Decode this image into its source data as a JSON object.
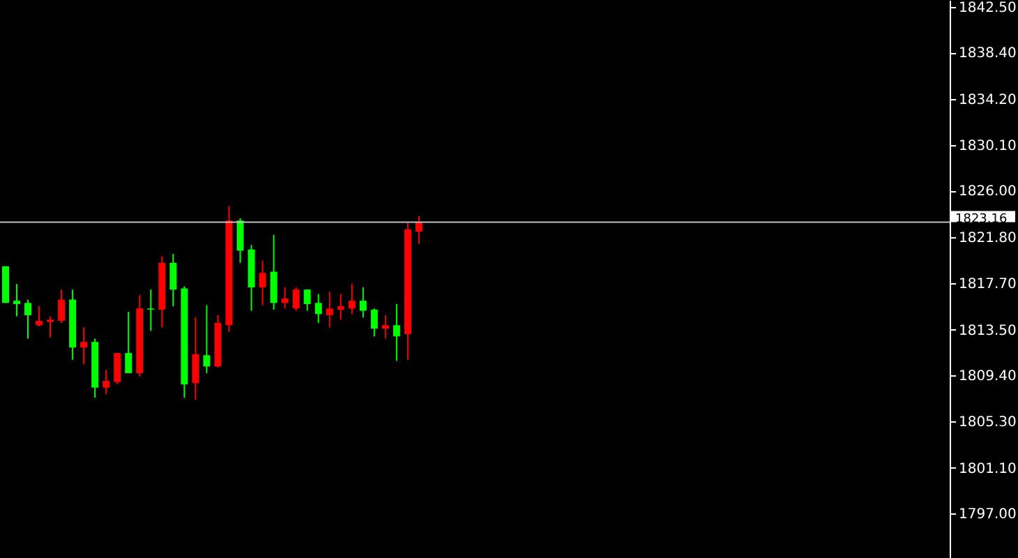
{
  "chart_data": {
    "type": "candlestick",
    "categories": [
      null,
      null,
      null,
      null,
      null,
      null,
      null,
      null,
      null,
      null,
      null,
      null,
      null,
      null,
      null,
      null,
      null,
      null,
      null,
      null,
      null,
      null,
      null,
      null,
      null,
      null,
      null,
      null,
      null,
      null,
      null,
      null,
      null,
      null,
      null,
      null,
      null,
      null,
      null,
      null,
      null,
      null,
      null,
      null,
      null,
      null,
      null,
      null,
      null,
      null,
      null,
      null,
      null,
      null,
      null,
      null,
      null,
      null,
      null,
      null,
      null,
      null,
      null,
      null,
      null,
      null,
      null,
      null,
      null,
      null,
      null,
      null,
      null,
      null,
      null,
      null,
      null,
      null,
      null,
      null,
      null,
      null,
      null,
      null,
      null
    ],
    "ohlc": [
      [
        1819.2,
        1819.2,
        1815.9,
        1815.9
      ],
      [
        1816.1,
        1817.6,
        1814.7,
        1815.8
      ],
      [
        1815.9,
        1816.2,
        1812.7,
        1814.8
      ],
      [
        1813.9,
        1815.6,
        1813.8,
        1814.3
      ],
      [
        1814.2,
        1814.7,
        1812.8,
        1814.4
      ],
      [
        1814.3,
        1817.1,
        1814.1,
        1816.2
      ],
      [
        1816.2,
        1817.1,
        1810.8,
        1811.9
      ],
      [
        1811.9,
        1813.7,
        1810.4,
        1812.4
      ],
      [
        1812.4,
        1812.7,
        1807.4,
        1808.3
      ],
      [
        1808.3,
        1809.9,
        1807.7,
        1808.9
      ],
      [
        1808.8,
        1811.4,
        1808.6,
        1811.4
      ],
      [
        1811.4,
        1815.1,
        1809.6,
        1809.6
      ],
      [
        1809.6,
        1816.6,
        1809.3,
        1815.4
      ],
      [
        1815.4,
        1817.1,
        1813.4,
        1815.3
      ],
      [
        1815.3,
        1820.1,
        1813.7,
        1819.5
      ],
      [
        1819.5,
        1820.3,
        1815.6,
        1817.1
      ],
      [
        1817.2,
        1817.4,
        1807.4,
        1808.6
      ],
      [
        1808.7,
        1814.6,
        1807.2,
        1811.3
      ],
      [
        1811.2,
        1815.7,
        1809.6,
        1810.2
      ],
      [
        1810.2,
        1814.8,
        1810.1,
        1814.1
      ],
      [
        1813.9,
        1824.6,
        1813.3,
        1823.3
      ],
      [
        1823.3,
        1823.5,
        1819.5,
        1820.6
      ],
      [
        1820.7,
        1821.1,
        1815.2,
        1817.3
      ],
      [
        1817.3,
        1819.7,
        1815.7,
        1818.6
      ],
      [
        1818.7,
        1822.0,
        1815.3,
        1815.9
      ],
      [
        1815.9,
        1817.3,
        1815.4,
        1816.3
      ],
      [
        1815.4,
        1817.3,
        1815.2,
        1817.1
      ],
      [
        1817.1,
        1817.1,
        1815.2,
        1815.8
      ],
      [
        1815.9,
        1816.7,
        1814.1,
        1814.9
      ],
      [
        1814.8,
        1816.9,
        1813.7,
        1815.4
      ],
      [
        1815.3,
        1816.7,
        1814.4,
        1815.6
      ],
      [
        1815.4,
        1817.6,
        1814.9,
        1816.1
      ],
      [
        1816.1,
        1817.3,
        1814.6,
        1815.2
      ],
      [
        1815.3,
        1815.4,
        1812.9,
        1813.6
      ],
      [
        1813.6,
        1814.8,
        1812.7,
        1813.9
      ],
      [
        1813.9,
        1815.8,
        1810.7,
        1812.9
      ],
      [
        1813.1,
        1823.1,
        1810.8,
        1822.5
      ],
      [
        1822.3,
        1823.7,
        1821.2,
        1823.16
      ],
      null,
      null,
      null,
      null,
      null,
      null,
      null,
      null,
      null,
      null,
      null,
      null,
      null,
      null,
      null,
      null,
      null,
      null,
      null,
      null,
      null,
      null,
      null,
      null,
      null,
      null,
      null,
      null,
      null,
      null,
      null,
      null,
      null,
      null,
      null,
      null,
      null,
      null,
      null,
      null,
      null,
      null,
      null,
      null,
      null,
      null,
      null
    ],
    "colors": [
      "#00ff00",
      "#00ff00",
      "#00ff00",
      "#ff0000",
      "#ff0000",
      "#ff0000",
      "#00ff00",
      "#ff0000",
      "#00ff00",
      "#ff0000",
      "#ff0000",
      "#00ff00",
      "#ff0000",
      "#00ff00",
      "#ff0000",
      "#00ff00",
      "#00ff00",
      "#ff0000",
      "#00ff00",
      "#ff0000",
      "#ff0000",
      "#00ff00",
      "#00ff00",
      "#ff0000",
      "#00ff00",
      "#ff0000",
      "#ff0000",
      "#00ff00",
      "#00ff00",
      "#ff0000",
      "#ff0000",
      "#ff0000",
      "#00ff00",
      "#00ff00",
      "#ff0000",
      "#00ff00",
      "#ff0000",
      "#ff0000",
      null,
      null,
      null,
      null,
      null,
      null,
      null,
      null,
      null,
      null,
      null,
      null,
      null,
      null,
      null,
      null,
      null,
      null,
      null,
      null,
      null,
      null,
      null,
      null,
      null,
      null,
      null,
      null,
      null,
      null,
      null,
      null,
      null,
      null,
      null,
      null,
      null,
      null,
      null,
      null,
      null,
      null,
      null,
      null,
      null,
      null,
      null
    ],
    "ylim": [
      1793.0,
      1843.1
    ],
    "yticks": [
      {
        "value": 1842.5,
        "label": "1842.50"
      },
      {
        "value": 1838.4,
        "label": "1838.40"
      },
      {
        "value": 1834.2,
        "label": "1834.20"
      },
      {
        "value": 1830.1,
        "label": "1830.10"
      },
      {
        "value": 1826.0,
        "label": "1826.00"
      },
      {
        "value": 1821.8,
        "label": "1821.80"
      },
      {
        "value": 1817.7,
        "label": "1817.70"
      },
      {
        "value": 1813.5,
        "label": "1813.50"
      },
      {
        "value": 1809.4,
        "label": "1809.40"
      },
      {
        "value": 1805.3,
        "label": "1805.30"
      },
      {
        "value": 1801.1,
        "label": "1801.10"
      },
      {
        "value": 1797.0,
        "label": "1797.00"
      }
    ],
    "ref_lines": [
      {
        "axis": "y",
        "value": 1823.16,
        "label": "1823.16",
        "color": "#c0c0c0"
      }
    ],
    "grid": false,
    "tick_labels": "y"
  }
}
